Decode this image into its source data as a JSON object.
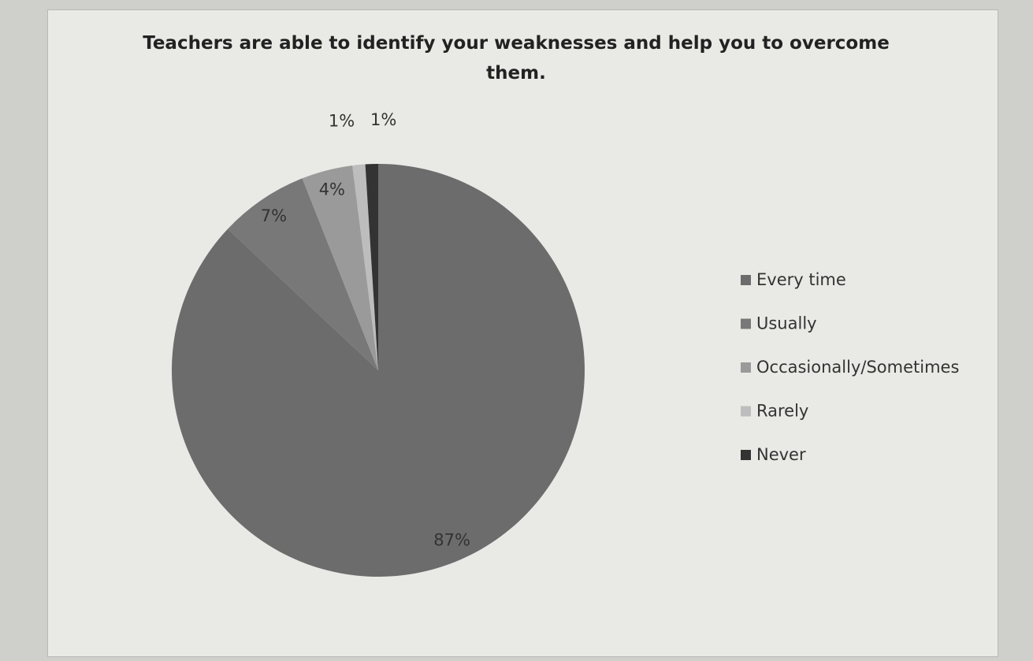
{
  "chart_data": {
    "type": "pie",
    "title": "Teachers are able to identify your weaknesses and help you to overcome them.",
    "categories": [
      "Every time",
      "Usually",
      "Occasionally/Sometimes",
      "Rarely",
      "Never"
    ],
    "values": [
      87,
      7,
      4,
      1,
      1
    ],
    "value_labels": [
      "87%",
      "7%",
      "4%",
      "1%",
      "1%"
    ],
    "colors": [
      "#6c6c6c",
      "#787878",
      "#9a9a9a",
      "#bdbdbd",
      "#333333"
    ],
    "legend": "right"
  }
}
